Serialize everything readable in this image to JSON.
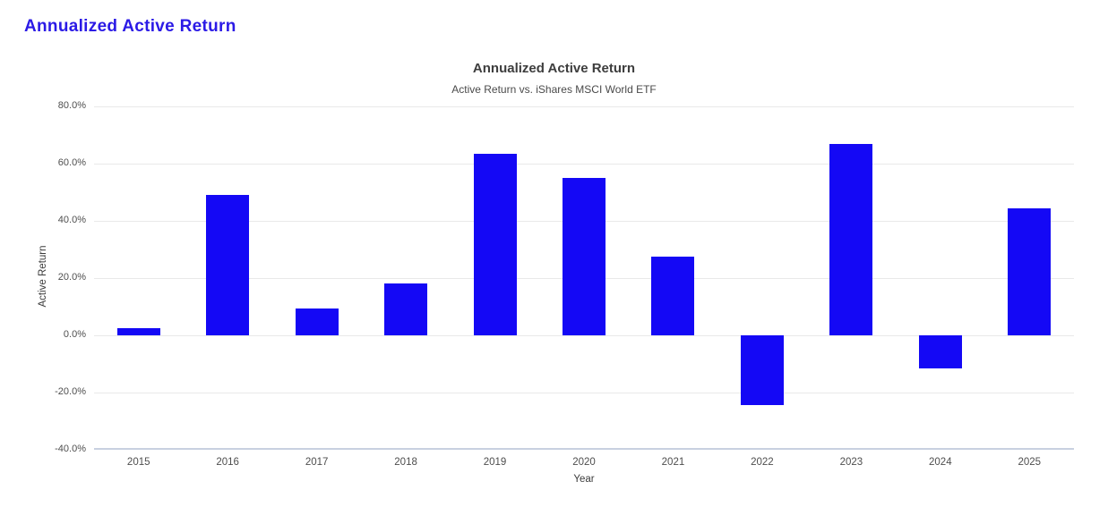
{
  "page": {
    "heading": "Annualized Active Return"
  },
  "chart_data": {
    "type": "bar",
    "title": "Annualized Active Return",
    "subtitle": "Active Return vs. iShares MSCI World ETF",
    "categories": [
      "2015",
      "2016",
      "2017",
      "2018",
      "2019",
      "2020",
      "2021",
      "2022",
      "2023",
      "2024",
      "2025"
    ],
    "values": [
      2.5,
      49.0,
      9.5,
      18.2,
      63.5,
      55.0,
      27.5,
      -24.5,
      67.0,
      -11.5,
      44.5
    ],
    "xlabel": "Year",
    "ylabel": "Active Return",
    "ylim": [
      -40,
      80
    ],
    "ytick_step": 20,
    "ytick_labels": [
      "80.0%",
      "60.0%",
      "40.0%",
      "20.0%",
      "0.0%",
      "-20.0%",
      "-40.0%"
    ],
    "grid": true,
    "legend_position": "none",
    "bar_color": "#1408F5"
  },
  "colors": {
    "page_heading": "#2B1AE6",
    "bar": "#1408F5",
    "chart_title": "#3D3D3D",
    "chart_subtitle": "#4A4A4A",
    "axis_text": "#4E4E4E",
    "gridline": "#E9E9E9",
    "axis_baseline": "#C8D0E0",
    "background": "#FFFFFF"
  }
}
